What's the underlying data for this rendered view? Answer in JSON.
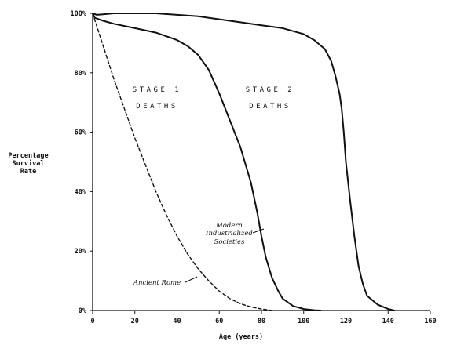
{
  "chart_data": {
    "type": "line",
    "xlabel": "Age (years)",
    "ylabel": [
      "Percentage",
      "Survival",
      "Rate"
    ],
    "xlim": [
      0,
      160
    ],
    "ylim": [
      0,
      100
    ],
    "x_ticks": [
      "0",
      "20",
      "40",
      "60",
      "80",
      "100",
      "120",
      "140",
      "160"
    ],
    "y_ticks": [
      "0%",
      "20%",
      "40%",
      "60%",
      "80%",
      "100%"
    ],
    "grid": false,
    "region_labels": [
      {
        "line1": "STAGE 1",
        "line2": "DEATHS"
      },
      {
        "line1": "STAGE 2",
        "line2": "DEATHS"
      }
    ],
    "series": [
      {
        "name": "Ancient Rome",
        "style": "dashed",
        "x": [
          0,
          5,
          10,
          15,
          20,
          25,
          30,
          35,
          40,
          45,
          50,
          55,
          60,
          65,
          70,
          75,
          80,
          85
        ],
        "y": [
          100,
          89,
          78,
          68,
          58,
          49,
          40,
          32,
          25,
          19,
          14,
          10,
          6.5,
          4,
          2.3,
          1.2,
          0.5,
          0
        ]
      },
      {
        "name": "Modern Industrialized Societies",
        "style": "solid",
        "x": [
          0,
          1,
          5,
          10,
          20,
          30,
          40,
          45,
          50,
          55,
          60,
          65,
          70,
          75,
          78,
          80,
          82,
          85,
          88,
          90,
          95,
          100,
          105,
          108
        ],
        "y": [
          100,
          98.5,
          97.5,
          96.5,
          95,
          93.5,
          91,
          89,
          86,
          81,
          73,
          64,
          55,
          43,
          33,
          25,
          18,
          11,
          6.5,
          4,
          1.5,
          0.5,
          0.1,
          0
        ]
      },
      {
        "name": "",
        "style": "solid",
        "x": [
          0,
          2,
          10,
          20,
          30,
          40,
          50,
          60,
          70,
          80,
          90,
          100,
          105,
          110,
          113,
          115,
          117,
          118,
          119,
          120,
          122,
          124,
          126,
          128,
          130,
          135,
          140,
          143
        ],
        "y": [
          100,
          99.5,
          100,
          100,
          100,
          99.5,
          99,
          98,
          97,
          96,
          95,
          93,
          91,
          88,
          84,
          79,
          73,
          68,
          60,
          50,
          37,
          25,
          15,
          9,
          5,
          2,
          0.5,
          0
        ]
      }
    ],
    "annotations": [
      {
        "lines": [
          "Modern",
          "Industrialized",
          "Societies"
        ]
      },
      {
        "lines": [
          "Ancient Rome"
        ]
      }
    ]
  }
}
